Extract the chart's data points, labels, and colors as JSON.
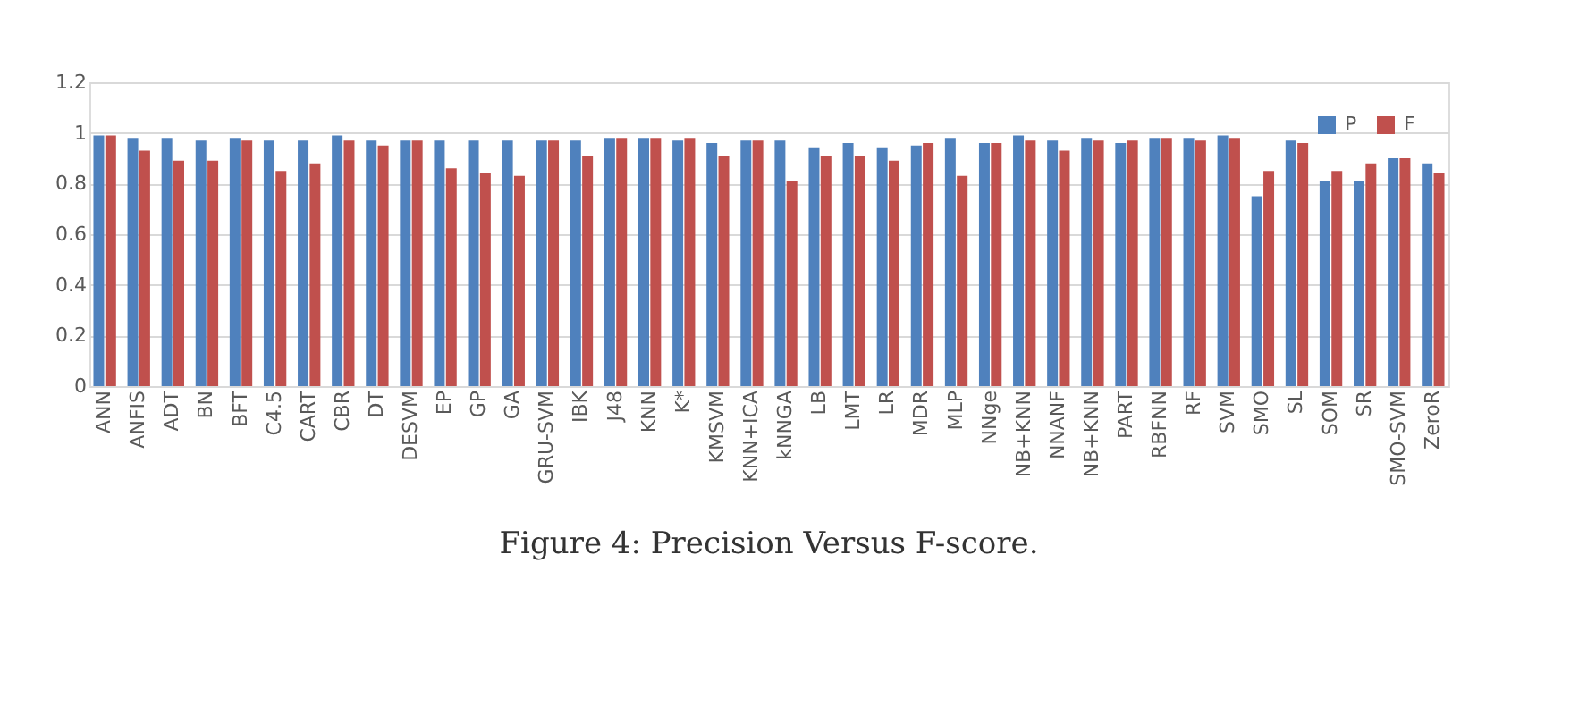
{
  "chart_data": {
    "type": "bar",
    "categories": [
      "ANN",
      "ANFIS",
      "ADT",
      "BN",
      "BFT",
      "C4.5",
      "CART",
      "CBR",
      "DT",
      "DESVM",
      "EP",
      "GP",
      "GA",
      "GRU-SVM",
      "IBK",
      "J48",
      "KNN",
      "K*",
      "KMSVM",
      "KNN+ICA",
      "kNNGA",
      "LB",
      "LMT",
      "LR",
      "MDR",
      "MLP",
      "NNge",
      "NB+KNN",
      "NNANF",
      "NB+KNN",
      "PART",
      "RBFNN",
      "RF",
      "SVM",
      "SMO",
      "SL",
      "SOM",
      "SR",
      "SMO-SVM",
      "ZeroR"
    ],
    "series": [
      {
        "name": "P",
        "color": "#4f81bd",
        "values": [
          0.99,
          0.98,
          0.98,
          0.97,
          0.98,
          0.97,
          0.97,
          0.99,
          0.97,
          0.97,
          0.97,
          0.97,
          0.97,
          0.97,
          0.97,
          0.98,
          0.98,
          0.97,
          0.96,
          0.97,
          0.97,
          0.94,
          0.96,
          0.94,
          0.95,
          0.98,
          0.96,
          0.99,
          0.97,
          0.98,
          0.96,
          0.98,
          0.98,
          0.99,
          0.75,
          0.97,
          0.81,
          0.81,
          0.9,
          0.88
        ]
      },
      {
        "name": "F",
        "color": "#c0504d",
        "values": [
          0.99,
          0.93,
          0.89,
          0.89,
          0.97,
          0.85,
          0.88,
          0.97,
          0.95,
          0.97,
          0.86,
          0.84,
          0.83,
          0.97,
          0.91,
          0.98,
          0.98,
          0.98,
          0.91,
          0.97,
          0.81,
          0.91,
          0.91,
          0.89,
          0.96,
          0.83,
          0.96,
          0.97,
          0.93,
          0.97,
          0.97,
          0.98,
          0.97,
          0.98,
          0.85,
          0.96,
          0.85,
          0.88,
          0.9,
          0.84
        ]
      }
    ],
    "ylim": [
      0,
      1.2
    ],
    "yticks": [
      0,
      0.2,
      0.4,
      0.6,
      0.8,
      1,
      1.2
    ],
    "grid": "y",
    "legend": "top right",
    "annotations": [
      "Figure 4: Precision Versus F-score."
    ]
  }
}
